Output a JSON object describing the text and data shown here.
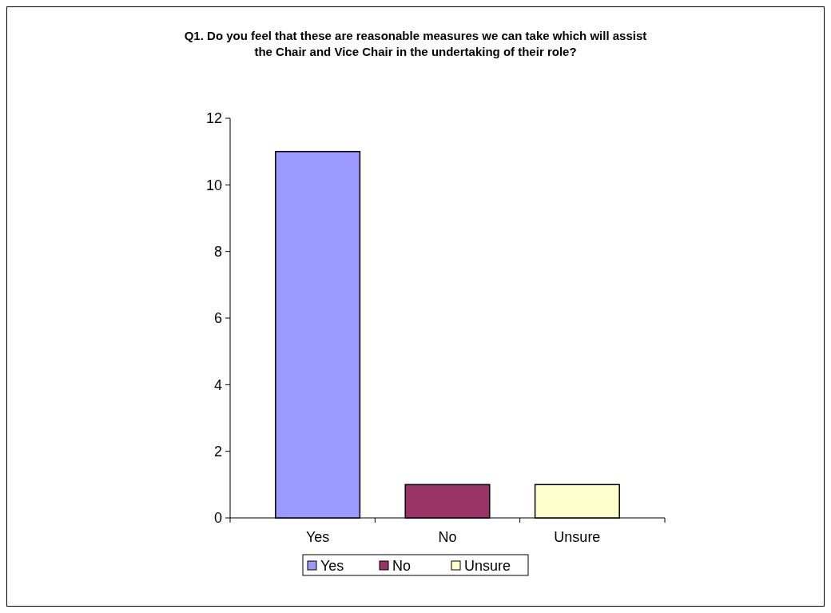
{
  "chart_data": {
    "type": "bar",
    "title": "Q1. Do you feel that these are reasonable measures we can take which will assist the Chair and Vice Chair in the undertaking of their role?",
    "categories": [
      "Yes",
      "No",
      "Unsure"
    ],
    "series": [
      {
        "name": "Yes",
        "color": "#9999ff",
        "values": [
          11,
          null,
          null
        ]
      },
      {
        "name": "No",
        "color": "#993366",
        "values": [
          null,
          1,
          null
        ]
      },
      {
        "name": "Unsure",
        "color": "#ffffcc",
        "values": [
          null,
          null,
          1
        ]
      }
    ],
    "ylim": [
      0,
      12
    ],
    "yticks": [
      0,
      2,
      4,
      6,
      8,
      10,
      12
    ],
    "grid": false,
    "legend": "bottom"
  }
}
